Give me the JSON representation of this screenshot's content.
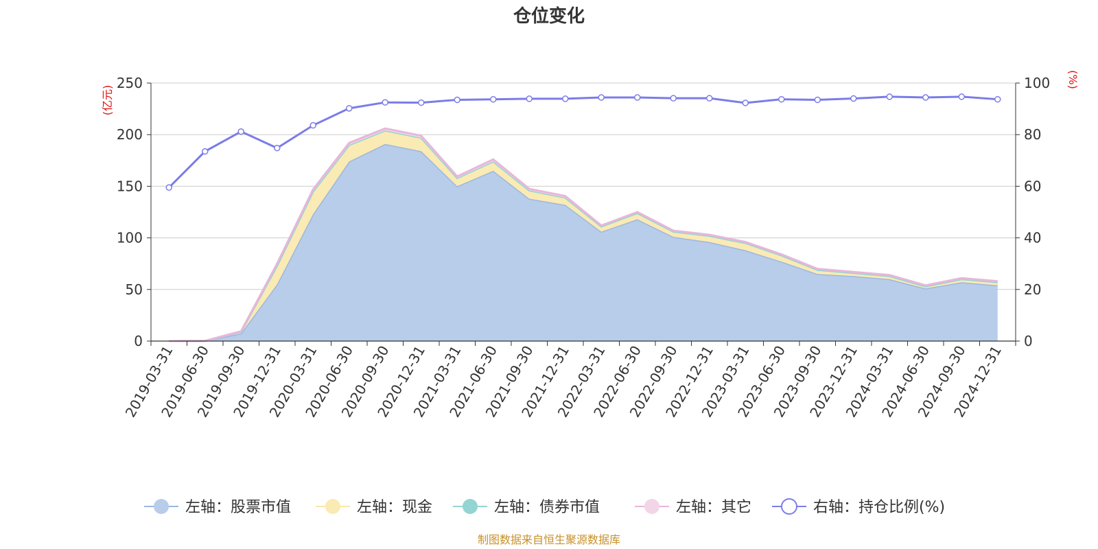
{
  "chart_data": {
    "type": "area",
    "title": "仓位变化",
    "categories": [
      "2019-03-31",
      "2019-06-30",
      "2019-09-30",
      "2019-12-31",
      "2020-03-31",
      "2020-06-30",
      "2020-09-30",
      "2020-12-31",
      "2021-03-31",
      "2021-06-30",
      "2021-09-30",
      "2021-12-31",
      "2022-03-31",
      "2022-06-30",
      "2022-09-30",
      "2022-12-31",
      "2023-03-31",
      "2023-06-30",
      "2023-09-30",
      "2023-12-31",
      "2024-03-31",
      "2024-06-30",
      "2024-09-30",
      "2024-12-31"
    ],
    "left_axis": {
      "unit": "(亿元)",
      "ylim": [
        0,
        250
      ],
      "ticks": [
        "0",
        "50",
        "100",
        "150",
        "200",
        "250"
      ]
    },
    "right_axis": {
      "unit": "(%)",
      "ylim": [
        0,
        100
      ],
      "ticks": [
        "0",
        "20",
        "40",
        "60",
        "80",
        "100"
      ]
    },
    "grid": true,
    "legend_position": "bottom",
    "series": [
      {
        "name": "左轴：股票市值",
        "axis": "left",
        "color": "#9cb7e0",
        "fill": "#b8cdea",
        "values": [
          0,
          0.2,
          7.5,
          55,
          123,
          174,
          191,
          184,
          150,
          165,
          138,
          132,
          106,
          118,
          101,
          96,
          88,
          77,
          65,
          63,
          60,
          51,
          57,
          54
        ]
      },
      {
        "name": "左轴：现金",
        "axis": "left",
        "color": "#fae6a8",
        "fill": "#faeab3",
        "values": [
          0,
          0,
          1.5,
          18,
          22,
          16,
          13,
          13,
          8,
          9,
          8,
          7,
          5,
          6,
          5,
          6,
          7,
          6,
          4,
          3,
          3,
          2,
          3,
          3
        ]
      },
      {
        "name": "左轴：债券市值",
        "axis": "left",
        "color": "#94d4d2",
        "fill": "#94d4d2",
        "values": [
          0,
          0,
          0,
          0,
          0,
          0,
          0,
          0,
          0,
          0,
          0,
          0,
          0,
          0,
          0,
          0,
          0,
          0,
          0,
          0,
          0,
          0,
          0,
          0
        ]
      },
      {
        "name": "左轴：其它",
        "axis": "left",
        "color": "#e8b6da",
        "fill": "#f2d6e8",
        "values": [
          0,
          0,
          0.5,
          2,
          2,
          2,
          2,
          2,
          1.5,
          2,
          1.5,
          1.5,
          1,
          1,
          1,
          1,
          1,
          1,
          1,
          1,
          1,
          1,
          1,
          1
        ]
      },
      {
        "name": "右轴：持仓比例(%)",
        "axis": "right",
        "color": "#7b7ce8",
        "values": [
          59.5,
          73.5,
          81.2,
          74.8,
          83.6,
          90.2,
          92.5,
          92.4,
          93.5,
          93.7,
          93.9,
          93.9,
          94.4,
          94.4,
          94.1,
          94.1,
          92.3,
          93.7,
          93.5,
          94.0,
          94.7,
          94.4,
          94.7,
          93.7
        ]
      }
    ]
  },
  "source_note": "制图数据来自恒生聚源数据库"
}
